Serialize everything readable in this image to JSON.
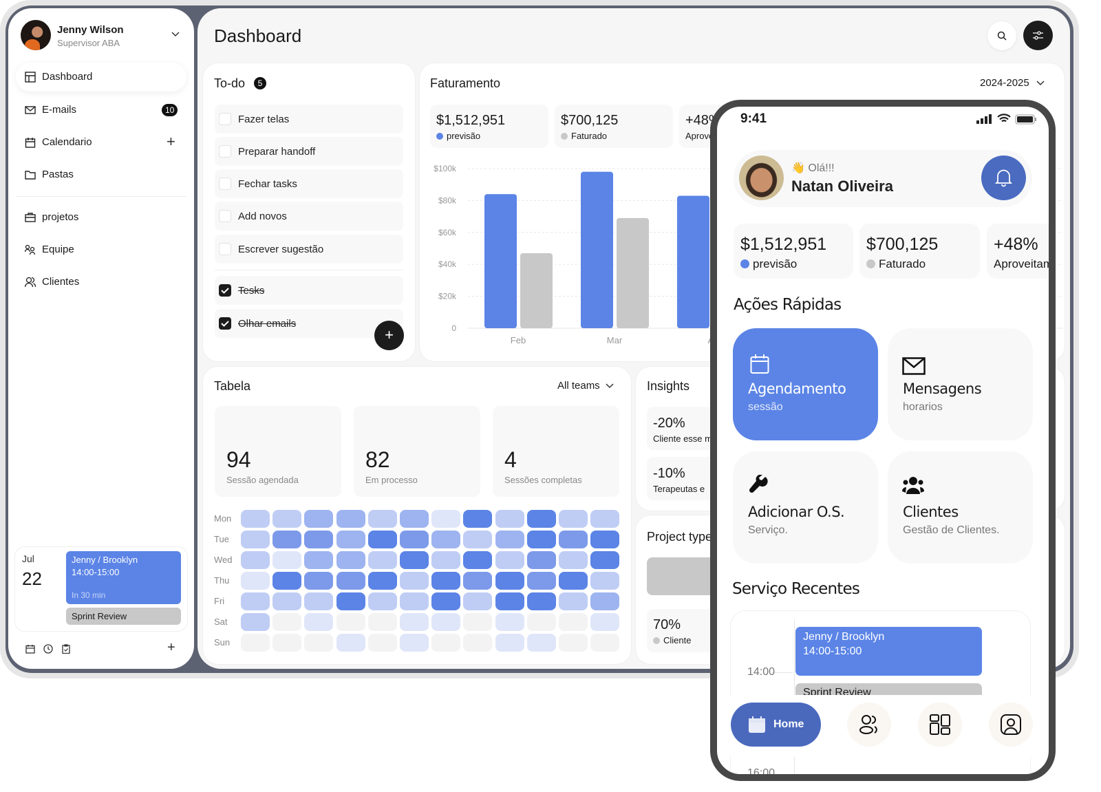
{
  "sidebar": {
    "user": {
      "name": "Jenny Wilson",
      "role": "Supervisor ABA"
    },
    "items": [
      {
        "label": "Dashboard",
        "icon": "dashboard-icon",
        "active": true
      },
      {
        "label": "E-mails",
        "icon": "mail-icon",
        "badge": "10"
      },
      {
        "label": "Calendario",
        "icon": "calendar-icon"
      },
      {
        "label": "Pastas",
        "icon": "folder-icon"
      },
      {
        "label": "projetos",
        "icon": "briefcase-icon"
      },
      {
        "label": "Equipe",
        "icon": "team-icon"
      },
      {
        "label": "Clientes",
        "icon": "users-icon"
      }
    ],
    "event": {
      "month": "Jul",
      "day": "22",
      "title": "Jenny / Brooklyn",
      "time": "14:00-15:00",
      "eta": "In 30 min",
      "next": "Sprint Review"
    }
  },
  "header": {
    "title": "Dashboard"
  },
  "todo": {
    "title": "To-do",
    "count": "5",
    "items": [
      {
        "label": "Fazer telas",
        "done": false
      },
      {
        "label": "Preparar handoff",
        "done": false
      },
      {
        "label": "Fechar tasks",
        "done": false
      },
      {
        "label": "Add novos",
        "done": false
      },
      {
        "label": "Escrever sugestão",
        "done": false
      },
      {
        "label": "Tesks",
        "done": true
      },
      {
        "label": "Olhar emails",
        "done": true
      }
    ]
  },
  "faturamento": {
    "title": "Faturamento",
    "period": "2024-2025",
    "stats": [
      {
        "value": "$1,512,951",
        "label": "previsão",
        "color": "#5b84e6"
      },
      {
        "value": "$700,125",
        "label": "Faturado",
        "color": "#c8c8c8"
      },
      {
        "value": "+48%",
        "label": "Aproveitamento"
      }
    ]
  },
  "chart_data": {
    "type": "bar",
    "categories": [
      "Feb",
      "Mar",
      "Apr"
    ],
    "category_labels": [
      "Feb",
      "Mar",
      "A"
    ],
    "series": [
      {
        "name": "previsão",
        "color": "#5b84e6",
        "values": [
          84,
          98,
          83
        ]
      },
      {
        "name": "Faturado",
        "color": "#c8c8c8",
        "values": [
          47,
          69,
          null
        ]
      }
    ],
    "yticks": [
      "0",
      "$20k",
      "$40k",
      "$60k",
      "$80k",
      "$100k"
    ],
    "ylim": [
      0,
      100
    ],
    "unit": "$k",
    "grid": true
  },
  "tabela": {
    "title": "Tabela",
    "filter": "All teams",
    "stats": [
      {
        "value": "94",
        "label": "Sessão agendada"
      },
      {
        "value": "82",
        "label": "Em processo"
      },
      {
        "value": "4",
        "label": "Sessões completas"
      }
    ],
    "days": [
      "Mon",
      "Tue",
      "Wed",
      "Thu",
      "Fri",
      "Sat",
      "Sun"
    ],
    "heatmap": [
      [
        2,
        2,
        3,
        3,
        2,
        3,
        1,
        5,
        2,
        5,
        2,
        2
      ],
      [
        2,
        4,
        4,
        3,
        5,
        4,
        3,
        2,
        3,
        5,
        4,
        5
      ],
      [
        2,
        1,
        3,
        3,
        2,
        5,
        2,
        5,
        2,
        4,
        2,
        5
      ],
      [
        1,
        5,
        4,
        4,
        5,
        2,
        5,
        4,
        5,
        4,
        5,
        2
      ],
      [
        2,
        2,
        2,
        5,
        2,
        2,
        5,
        2,
        5,
        5,
        2,
        3
      ],
      [
        2,
        0,
        1,
        0,
        0,
        1,
        1,
        0,
        1,
        0,
        0,
        1
      ],
      [
        0,
        0,
        0,
        1,
        0,
        1,
        0,
        0,
        1,
        1,
        0,
        0
      ]
    ],
    "heat_colors": [
      "#f3f3f3",
      "#dfe6f9",
      "#bfcdf5",
      "#9eb4f0",
      "#7d9aea",
      "#5b84e6"
    ]
  },
  "insights": {
    "title": "Insights",
    "items": [
      {
        "value": "-20%",
        "label": "Cliente esse m"
      },
      {
        "value": "-10%",
        "label": "Terapeutas e"
      }
    ]
  },
  "project": {
    "title": "Project type",
    "value": "70%",
    "label": "Cliente"
  },
  "phone": {
    "time": "9:41",
    "greeting": "👋 Olá!!!",
    "name": "Natan Oliveira",
    "stats": [
      {
        "value": "$1,512,951",
        "label": "previsão"
      },
      {
        "value": "$700,125",
        "label": "Faturado"
      },
      {
        "value": "+48%",
        "label": "Aproveitamento"
      }
    ],
    "quick_title": "Ações Rápidas",
    "tiles": [
      {
        "title": "Agendamento",
        "sub": "sessão",
        "icon": "calendar-icon"
      },
      {
        "title": "Mensagens",
        "sub": "horarios",
        "icon": "mail-icon"
      },
      {
        "title": "Adicionar O.S.",
        "sub": "Serviço.",
        "icon": "wrench-icon"
      },
      {
        "title": "Clientes",
        "sub": "Gestão de Clientes.",
        "icon": "group-icon"
      }
    ],
    "recent_title": "Serviço Recentes",
    "timeline": {
      "hour1": "14:00",
      "hour2": "16:00",
      "event_title": "Jenny / Brooklyn",
      "event_time": "14:00-15:00",
      "next": "Sprint Review"
    },
    "nav": {
      "home": "Home"
    }
  }
}
